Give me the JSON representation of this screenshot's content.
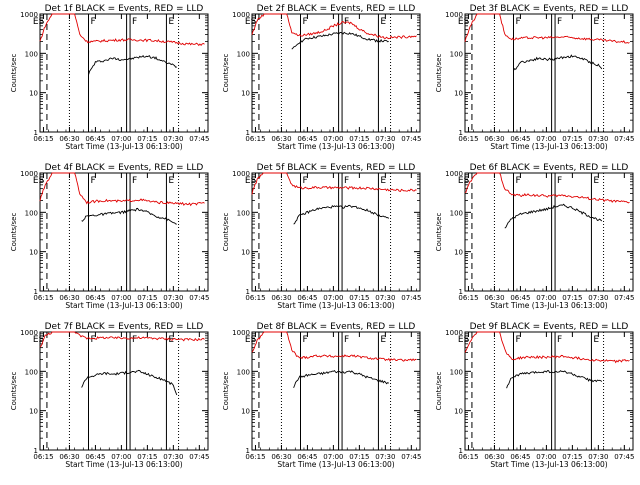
{
  "figure": {
    "start_time_label": "Start Time (13-Jul-13 06:13:00)",
    "ylabel": "Counts/sec"
  },
  "colors": {
    "events": "#000000",
    "lld": "#e00000",
    "axes": "#000000"
  },
  "chart_data": [
    {
      "type": "line",
      "title": "Det 1f BLACK = Events, RED = LLD",
      "xlabel": "Start Time (13-Jul-13 06:13:00)",
      "ylabel": "Counts/sec",
      "yscale": "log",
      "ylim": [
        1,
        1000
      ],
      "x_tick_labels": [
        "06:15",
        "06:30",
        "06:45",
        "07:00",
        "07:15",
        "07:30",
        "07:45"
      ],
      "y_tick_labels": [
        "1",
        "10",
        "100",
        "1000"
      ],
      "markers": [
        "ES",
        "F",
        "F",
        "E"
      ],
      "series": [
        {
          "name": "Events",
          "color": "#000000",
          "x": [
            "06:41",
            "06:45",
            "06:50",
            "06:55",
            "07:00",
            "07:05",
            "07:10",
            "07:15",
            "07:20",
            "07:25",
            "07:30",
            "07:32"
          ],
          "y": [
            30,
            60,
            65,
            75,
            70,
            72,
            80,
            85,
            75,
            60,
            50,
            45
          ]
        },
        {
          "name": "LLD",
          "color": "#e00000",
          "x": [
            "06:13",
            "06:16",
            "06:20",
            "06:25",
            "06:30",
            "06:33",
            "06:36",
            "06:40",
            "06:45",
            "06:50",
            "07:00",
            "07:10",
            "07:20",
            "07:30",
            "07:40",
            "07:48"
          ],
          "y": [
            200,
            500,
            1000,
            1000,
            1000,
            1000,
            300,
            200,
            200,
            210,
            220,
            220,
            210,
            190,
            170,
            170
          ]
        }
      ]
    },
    {
      "type": "line",
      "title": "Det 2f BLACK = Events, RED = LLD",
      "xlabel": "Start Time (13-Jul-13 06:13:00)",
      "ylabel": "Counts/sec",
      "yscale": "log",
      "ylim": [
        1,
        1000
      ],
      "x_tick_labels": [
        "06:15",
        "06:30",
        "06:45",
        "07:00",
        "07:15",
        "07:30",
        "07:45"
      ],
      "y_tick_labels": [
        "1",
        "10",
        "100",
        "1000"
      ],
      "markers": [
        "ES",
        "F",
        "F",
        "E"
      ],
      "series": [
        {
          "name": "Events",
          "color": "#000000",
          "x": [
            "06:36",
            "06:40",
            "06:45",
            "06:50",
            "06:55",
            "07:00",
            "07:05",
            "07:10",
            "07:15",
            "07:20",
            "07:25",
            "07:32"
          ],
          "y": [
            120,
            190,
            240,
            260,
            280,
            310,
            330,
            320,
            270,
            230,
            210,
            200
          ]
        },
        {
          "name": "LLD",
          "color": "#e00000",
          "x": [
            "06:13",
            "06:16",
            "06:20",
            "06:25",
            "06:30",
            "06:33",
            "06:36",
            "06:40",
            "06:45",
            "06:50",
            "06:55",
            "07:00",
            "07:05",
            "07:10",
            "07:15",
            "07:20",
            "07:30",
            "07:40",
            "07:48"
          ],
          "y": [
            300,
            700,
            1000,
            1000,
            1000,
            1000,
            350,
            280,
            300,
            330,
            380,
            500,
            600,
            600,
            420,
            320,
            250,
            260,
            280
          ]
        }
      ]
    },
    {
      "type": "line",
      "title": "Det 3f BLACK = Events, RED = LLD",
      "xlabel": "Start Time (13-Jul-13 06:13:00)",
      "ylabel": "Counts/sec",
      "yscale": "log",
      "ylim": [
        1,
        1000
      ],
      "x_tick_labels": [
        "06:15",
        "06:30",
        "06:45",
        "07:00",
        "07:15",
        "07:30",
        "07:45"
      ],
      "y_tick_labels": [
        "1",
        "10",
        "100",
        "1000"
      ],
      "markers": [
        "ES",
        "F",
        "F",
        "E"
      ],
      "series": [
        {
          "name": "Events",
          "color": "#000000",
          "x": [
            "06:41",
            "06:45",
            "06:50",
            "06:55",
            "07:00",
            "07:05",
            "07:10",
            "07:15",
            "07:20",
            "07:25",
            "07:30",
            "07:32"
          ],
          "y": [
            35,
            60,
            65,
            75,
            70,
            72,
            80,
            85,
            75,
            60,
            50,
            40
          ]
        },
        {
          "name": "LLD",
          "color": "#e00000",
          "x": [
            "06:13",
            "06:16",
            "06:20",
            "06:25",
            "06:30",
            "06:33",
            "06:36",
            "06:40",
            "06:45",
            "06:50",
            "07:00",
            "07:10",
            "07:20",
            "07:30",
            "07:40",
            "07:48"
          ],
          "y": [
            200,
            500,
            1000,
            1000,
            1000,
            1000,
            300,
            230,
            240,
            250,
            250,
            260,
            240,
            220,
            200,
            190
          ]
        }
      ]
    },
    {
      "type": "line",
      "title": "Det 4f BLACK = Events, RED = LLD",
      "xlabel": "Start Time (13-Jul-13 06:13:00)",
      "ylabel": "Counts/sec",
      "yscale": "log",
      "ylim": [
        1,
        1000
      ],
      "x_tick_labels": [
        "06:15",
        "06:30",
        "06:45",
        "07:00",
        "07:15",
        "07:30",
        "07:45"
      ],
      "y_tick_labels": [
        "1",
        "10",
        "100",
        "1000"
      ],
      "markers": [
        "ES",
        "F",
        "F",
        "E"
      ],
      "series": [
        {
          "name": "Events",
          "color": "#000000",
          "x": [
            "06:37",
            "06:40",
            "06:45",
            "06:50",
            "06:55",
            "07:00",
            "07:05",
            "07:10",
            "07:15",
            "07:20",
            "07:25",
            "07:32"
          ],
          "y": [
            60,
            80,
            85,
            90,
            95,
            100,
            110,
            120,
            100,
            80,
            70,
            50
          ]
        },
        {
          "name": "LLD",
          "color": "#e00000",
          "x": [
            "06:13",
            "06:16",
            "06:20",
            "06:25",
            "06:30",
            "06:33",
            "06:36",
            "06:40",
            "06:45",
            "06:50",
            "07:00",
            "07:10",
            "07:20",
            "07:30",
            "07:40",
            "07:48"
          ],
          "y": [
            200,
            500,
            1000,
            1000,
            1000,
            1000,
            300,
            180,
            190,
            200,
            190,
            210,
            180,
            170,
            160,
            170
          ]
        }
      ]
    },
    {
      "type": "line",
      "title": "Det 5f BLACK = Events, RED = LLD",
      "xlabel": "Start Time (13-Jul-13 06:13:00)",
      "ylabel": "Counts/sec",
      "yscale": "log",
      "ylim": [
        1,
        1000
      ],
      "x_tick_labels": [
        "06:15",
        "06:30",
        "06:45",
        "07:00",
        "07:15",
        "07:30",
        "07:45"
      ],
      "y_tick_labels": [
        "1",
        "10",
        "100",
        "1000"
      ],
      "markers": [
        "ES",
        "F",
        "F",
        "E"
      ],
      "series": [
        {
          "name": "Events",
          "color": "#000000",
          "x": [
            "06:37",
            "06:40",
            "06:45",
            "06:50",
            "06:55",
            "07:00",
            "07:05",
            "07:10",
            "07:15",
            "07:20",
            "07:25",
            "07:32"
          ],
          "y": [
            50,
            80,
            100,
            120,
            130,
            140,
            135,
            145,
            130,
            110,
            90,
            70
          ]
        },
        {
          "name": "LLD",
          "color": "#e00000",
          "x": [
            "06:13",
            "06:16",
            "06:20",
            "06:25",
            "06:30",
            "06:33",
            "06:36",
            "06:40",
            "06:45",
            "06:50",
            "07:00",
            "07:10",
            "07:20",
            "07:30",
            "07:40",
            "07:48"
          ],
          "y": [
            300,
            700,
            1000,
            1000,
            1000,
            1000,
            500,
            420,
            420,
            430,
            420,
            420,
            410,
            380,
            360,
            370
          ]
        }
      ]
    },
    {
      "type": "line",
      "title": "Det 6f BLACK = Events, RED = LLD",
      "xlabel": "Start Time (13-Jul-13 06:13:00)",
      "ylabel": "Counts/sec",
      "yscale": "log",
      "ylim": [
        1,
        1000
      ],
      "x_tick_labels": [
        "06:15",
        "06:30",
        "06:45",
        "07:00",
        "07:15",
        "07:30",
        "07:45"
      ],
      "y_tick_labels": [
        "1",
        "10",
        "100",
        "1000"
      ],
      "markers": [
        "ES",
        "F",
        "F",
        "E"
      ],
      "series": [
        {
          "name": "Events",
          "color": "#000000",
          "x": [
            "06:36",
            "06:40",
            "06:45",
            "06:50",
            "06:55",
            "07:00",
            "07:05",
            "07:10",
            "07:15",
            "07:20",
            "07:25",
            "07:32"
          ],
          "y": [
            40,
            70,
            90,
            100,
            110,
            120,
            140,
            150,
            130,
            100,
            80,
            60
          ]
        },
        {
          "name": "LLD",
          "color": "#e00000",
          "x": [
            "06:13",
            "06:16",
            "06:20",
            "06:25",
            "06:30",
            "06:33",
            "06:36",
            "06:40",
            "06:45",
            "06:50",
            "07:00",
            "07:10",
            "07:20",
            "07:30",
            "07:40",
            "07:48"
          ],
          "y": [
            300,
            600,
            1000,
            1000,
            1000,
            1000,
            400,
            280,
            270,
            280,
            260,
            270,
            240,
            210,
            190,
            180
          ]
        }
      ]
    },
    {
      "type": "line",
      "title": "Det 7f BLACK = Events, RED = LLD",
      "xlabel": "Start Time (13-Jul-13 06:13:00)",
      "ylabel": "Counts/sec",
      "yscale": "log",
      "ylim": [
        1,
        1000
      ],
      "x_tick_labels": [
        "06:15",
        "06:30",
        "06:45",
        "07:00",
        "07:15",
        "07:30",
        "07:45"
      ],
      "y_tick_labels": [
        "1",
        "10",
        "100",
        "1000"
      ],
      "markers": [
        "ES",
        "F",
        "F",
        "E"
      ],
      "series": [
        {
          "name": "Events",
          "color": "#000000",
          "x": [
            "06:37",
            "06:40",
            "06:45",
            "06:50",
            "06:55",
            "07:00",
            "07:05",
            "07:10",
            "07:15",
            "07:20",
            "07:25",
            "07:30",
            "07:32"
          ],
          "y": [
            40,
            70,
            80,
            90,
            85,
            90,
            95,
            100,
            85,
            70,
            60,
            45,
            25
          ]
        },
        {
          "name": "LLD",
          "color": "#e00000",
          "x": [
            "06:13",
            "06:16",
            "06:20",
            "06:25",
            "06:30",
            "06:33",
            "06:36",
            "06:40",
            "06:45",
            "06:50",
            "07:00",
            "07:10",
            "07:20",
            "07:30",
            "07:40",
            "07:48"
          ],
          "y": [
            400,
            800,
            1000,
            1000,
            1000,
            1000,
            800,
            700,
            700,
            720,
            700,
            710,
            690,
            660,
            640,
            650
          ]
        }
      ]
    },
    {
      "type": "line",
      "title": "Det 8f BLACK = Events, RED = LLD",
      "xlabel": "Start Time (13-Jul-13 06:13:00)",
      "ylabel": "Counts/sec",
      "yscale": "log",
      "ylim": [
        1,
        1000
      ],
      "x_tick_labels": [
        "06:15",
        "06:30",
        "06:45",
        "07:00",
        "07:15",
        "07:30",
        "07:45"
      ],
      "y_tick_labels": [
        "1",
        "10",
        "100",
        "1000"
      ],
      "markers": [
        "ES",
        "F",
        "F",
        "E"
      ],
      "series": [
        {
          "name": "Events",
          "color": "#000000",
          "x": [
            "06:37",
            "06:40",
            "06:45",
            "06:50",
            "06:55",
            "07:00",
            "07:05",
            "07:10",
            "07:15",
            "07:20",
            "07:25",
            "07:32"
          ],
          "y": [
            40,
            70,
            80,
            85,
            90,
            100,
            95,
            100,
            85,
            70,
            60,
            50
          ]
        },
        {
          "name": "LLD",
          "color": "#e00000",
          "x": [
            "06:13",
            "06:16",
            "06:20",
            "06:25",
            "06:30",
            "06:33",
            "06:36",
            "06:40",
            "06:45",
            "06:50",
            "07:00",
            "07:10",
            "07:20",
            "07:30",
            "07:40",
            "07:48"
          ],
          "y": [
            300,
            600,
            1000,
            1000,
            1000,
            1000,
            350,
            220,
            230,
            250,
            240,
            250,
            220,
            200,
            190,
            200
          ]
        }
      ]
    },
    {
      "type": "line",
      "title": "Det 9f BLACK = Events, RED = LLD",
      "xlabel": "Start Time (13-Jul-13 06:13:00)",
      "ylabel": "Counts/sec",
      "yscale": "log",
      "ylim": [
        1,
        1000
      ],
      "x_tick_labels": [
        "06:15",
        "06:30",
        "06:45",
        "07:00",
        "07:15",
        "07:30",
        "07:45"
      ],
      "y_tick_labels": [
        "1",
        "10",
        "100",
        "1000"
      ],
      "markers": [
        "ES",
        "F",
        "F",
        "E"
      ],
      "series": [
        {
          "name": "Events",
          "color": "#000000",
          "x": [
            "06:37",
            "06:40",
            "06:45",
            "06:50",
            "06:55",
            "07:00",
            "07:05",
            "07:10",
            "07:15",
            "07:20",
            "07:25",
            "07:32"
          ],
          "y": [
            40,
            70,
            85,
            90,
            95,
            100,
            95,
            100,
            85,
            70,
            60,
            55
          ]
        },
        {
          "name": "LLD",
          "color": "#e00000",
          "x": [
            "06:13",
            "06:16",
            "06:20",
            "06:25",
            "06:30",
            "06:33",
            "06:36",
            "06:40",
            "06:45",
            "06:50",
            "07:00",
            "07:10",
            "07:20",
            "07:30",
            "07:40",
            "07:48"
          ],
          "y": [
            300,
            600,
            1000,
            1000,
            1000,
            1000,
            350,
            200,
            220,
            230,
            230,
            240,
            210,
            190,
            180,
            190
          ]
        }
      ]
    }
  ]
}
